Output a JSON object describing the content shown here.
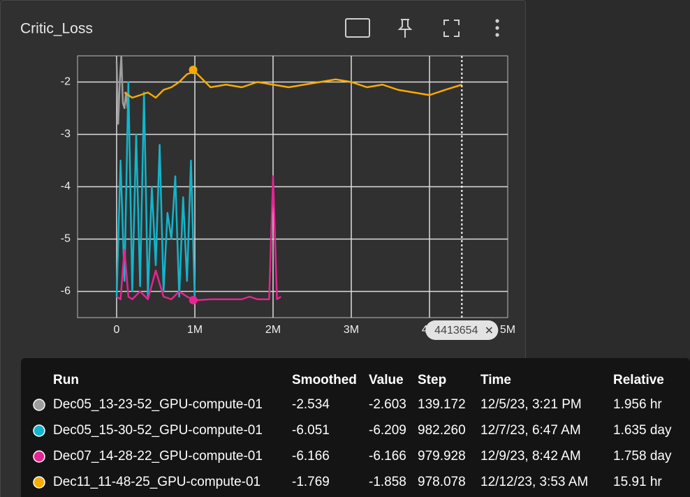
{
  "chart_data": {
    "type": "line",
    "title": "Critic_Loss",
    "xlim": [
      -500000,
      5000000
    ],
    "xticks": [
      0,
      {
        "value": 1000000,
        "label": "1M"
      },
      {
        "value": 2000000,
        "label": "2M"
      },
      {
        "value": 3000000,
        "label": "3M"
      },
      {
        "value": 4000000,
        "label": "4M"
      },
      {
        "value": 5000000,
        "label": "5M"
      }
    ],
    "ylim": [
      -6.5,
      -1.5
    ],
    "yticks": [
      -2,
      -3,
      -4,
      -5,
      -6
    ],
    "grid": true,
    "cursor": {
      "value": 4413654,
      "label": "4413654"
    },
    "series": [
      {
        "name": "Dec05_13-23-52_GPU-compute-01",
        "color": "#9e9e9e",
        "x": [
          0,
          20000,
          40000,
          60000,
          80000,
          100000,
          120000,
          140000,
          160000
        ],
        "values": [
          -1.6,
          -2.8,
          -2.0,
          -1.5,
          -2.4,
          -2.5,
          -2.2,
          -2.5,
          -2.45
        ]
      },
      {
        "name": "Dec05_15-30-52_GPU-compute-01",
        "color": "#12b5cb",
        "x": [
          0,
          50000,
          100000,
          150000,
          200000,
          250000,
          300000,
          350000,
          400000,
          450000,
          500000,
          550000,
          600000,
          650000,
          700000,
          750000,
          800000,
          850000,
          900000,
          950000,
          1000000
        ],
        "values": [
          -6.1,
          -3.5,
          -5.8,
          -2.0,
          -6.0,
          -3.0,
          -5.9,
          -2.2,
          -6.1,
          -4.0,
          -5.5,
          -3.2,
          -6.0,
          -4.5,
          -5.0,
          -3.8,
          -6.1,
          -4.2,
          -5.8,
          -3.5,
          -6.2
        ]
      },
      {
        "name": "Dec07_14-28-22_GPU-compute-01",
        "color": "#e52592",
        "x": [
          0,
          50000,
          100000,
          150000,
          200000,
          300000,
          400000,
          500000,
          600000,
          700000,
          800000,
          900000,
          1000000,
          1200000,
          1400000,
          1600000,
          1700000,
          1800000,
          1900000,
          1950000,
          2000000,
          2050000,
          2100000
        ],
        "values": [
          -6.1,
          -6.15,
          -5.2,
          -6.1,
          -6.15,
          -6.0,
          -6.15,
          -5.6,
          -6.1,
          -6.15,
          -6.0,
          -6.1,
          -6.17,
          -6.15,
          -6.15,
          -6.15,
          -6.1,
          -6.15,
          -6.15,
          -6.15,
          -3.8,
          -6.15,
          -6.1
        ],
        "hover": {
          "x": 979928,
          "value": -6.166
        }
      },
      {
        "name": "Dec11_11-48-25_GPU-compute-01",
        "color": "#f9ab00",
        "x": [
          100000,
          200000,
          300000,
          400000,
          500000,
          600000,
          700000,
          800000,
          900000,
          1000000,
          1200000,
          1400000,
          1600000,
          1800000,
          2000000,
          2200000,
          2400000,
          2600000,
          2800000,
          3000000,
          3200000,
          3400000,
          3600000,
          3800000,
          4000000,
          4200000,
          4413654
        ],
        "values": [
          -2.2,
          -2.3,
          -2.25,
          -2.2,
          -2.3,
          -2.15,
          -2.1,
          -2.0,
          -1.85,
          -1.8,
          -2.1,
          -2.05,
          -2.1,
          -2.0,
          -2.05,
          -2.1,
          -2.05,
          -2.0,
          -1.95,
          -2.0,
          -2.1,
          -2.05,
          -2.15,
          -2.2,
          -2.25,
          -2.15,
          -2.05
        ],
        "hover": {
          "x": 978078,
          "value": -1.769
        }
      }
    ]
  },
  "tooltip": {
    "columns": [
      "Run",
      "Smoothed",
      "Value",
      "Step",
      "Time",
      "Relative"
    ],
    "rows": [
      [
        "Dec05_13-23-52_GPU-compute-01",
        "-2.534",
        "-2.603",
        "139.172",
        "12/5/23, 3:21 PM",
        "1.956 hr"
      ],
      [
        "Dec05_15-30-52_GPU-compute-01",
        "-6.051",
        "-6.209",
        "982.260",
        "12/7/23, 6:47 AM",
        "1.635 day"
      ],
      [
        "Dec07_14-28-22_GPU-compute-01",
        "-6.166",
        "-6.166",
        "979.928",
        "12/9/23, 8:42 AM",
        "1.758 day"
      ],
      [
        "Dec11_11-48-25_GPU-compute-01",
        "-1.769",
        "-1.858",
        "978.078",
        "12/12/23, 3:53 AM",
        "15.91 hr"
      ]
    ]
  }
}
